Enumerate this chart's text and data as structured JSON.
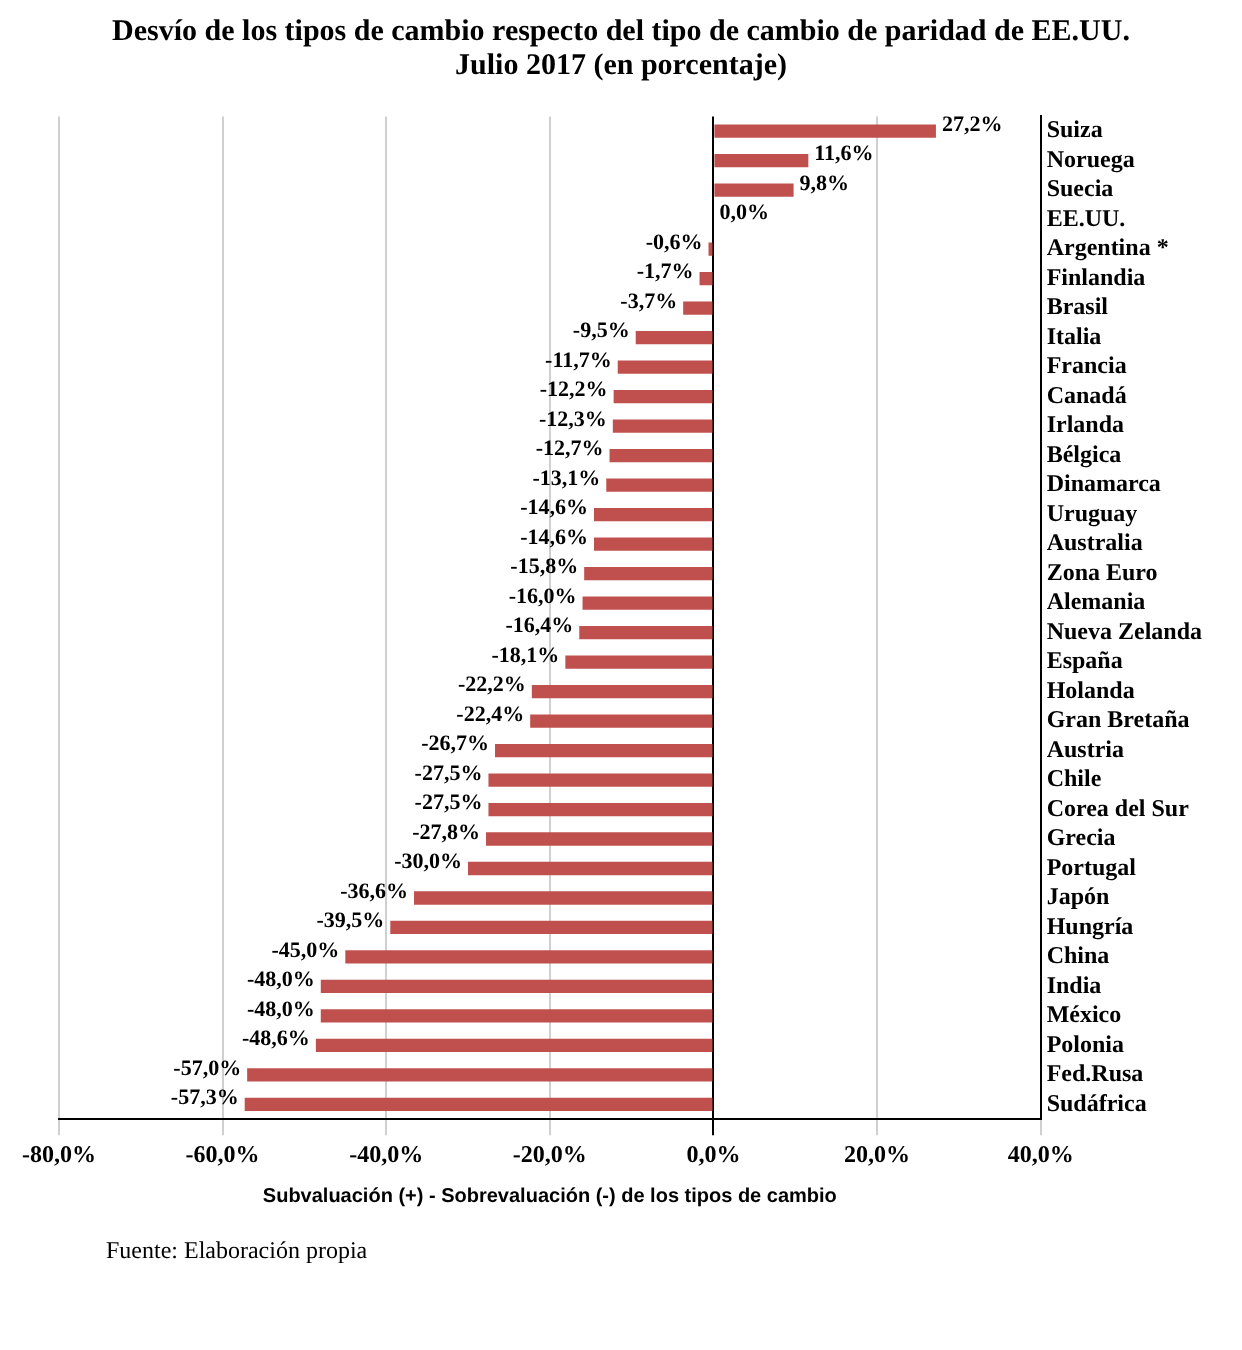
{
  "chart_data": {
    "type": "bar",
    "orientation": "horizontal",
    "title": "Desvío de los tipos de cambio respecto del tipo de cambio de paridad de EE.UU.\nJulio 2017 (en porcentaje)",
    "xlabel": "Subvaluación (+) - Sobrevaluación (-) de los tipos de cambio",
    "categories": [
      "Suiza",
      "Noruega",
      "Suecia",
      "EE.UU.",
      "Argentina *",
      "Finlandia",
      "Brasil",
      "Italia",
      "Francia",
      "Canadá",
      "Irlanda",
      "Bélgica",
      "Dinamarca",
      "Uruguay",
      "Australia",
      "Zona Euro",
      "Alemania",
      "Nueva Zelanda",
      "España",
      "Holanda",
      "Gran Bretaña",
      "Austria",
      "Chile",
      "Corea del Sur",
      "Grecia",
      "Portugal",
      "Japón",
      "Hungría",
      "China",
      "India",
      "México",
      "Polonia",
      "Fed.Rusa",
      "Sudáfrica"
    ],
    "values": [
      27.2,
      11.6,
      9.8,
      0,
      -0.6,
      -1.7,
      -3.7,
      -9.5,
      -11.7,
      -12.2,
      -12.3,
      -12.7,
      -13.1,
      -14.6,
      -14.6,
      -15.8,
      -16.0,
      -16.4,
      -18.1,
      -22.2,
      -22.4,
      -26.7,
      -27.5,
      -27.5,
      -27.8,
      -30.0,
      -36.6,
      -39.5,
      -45.0,
      -48.0,
      -48.0,
      -48.6,
      -57.0,
      -57.3
    ],
    "value_labels": [
      "27,2%",
      "11,6%",
      "9,8%",
      "0,0%",
      "-0,6%",
      "-1,7%",
      "-3,7%",
      "-9,5%",
      "-11,7%",
      "-12,2%",
      "-12,3%",
      "-12,7%",
      "-13,1%",
      "-14,6%",
      "-14,6%",
      "-15,8%",
      "-16,0%",
      "-16,4%",
      "-18,1%",
      "-22,2%",
      "-22,4%",
      "-26,7%",
      "-27,5%",
      "-27,5%",
      "-27,8%",
      "-30,0%",
      "-36,6%",
      "-39,5%",
      "-45,0%",
      "-48,0%",
      "-48,0%",
      "-48,6%",
      "-57,0%",
      "-57,3%"
    ],
    "color": "#c0504d",
    "xlim": [
      -80,
      40
    ],
    "xticks": [
      {
        "value": -80,
        "label": "-80,0%"
      },
      {
        "value": -60,
        "label": "-60,0%"
      },
      {
        "value": -40,
        "label": "-40,0%"
      },
      {
        "value": -20,
        "label": "-20,0%"
      },
      {
        "value": 0,
        "label": "0,0%"
      },
      {
        "value": 20,
        "label": "20,0%"
      },
      {
        "value": 40,
        "label": "40,0%"
      }
    ],
    "grid": "x",
    "annotations": [
      "Fuente: Elaboración propia"
    ]
  }
}
